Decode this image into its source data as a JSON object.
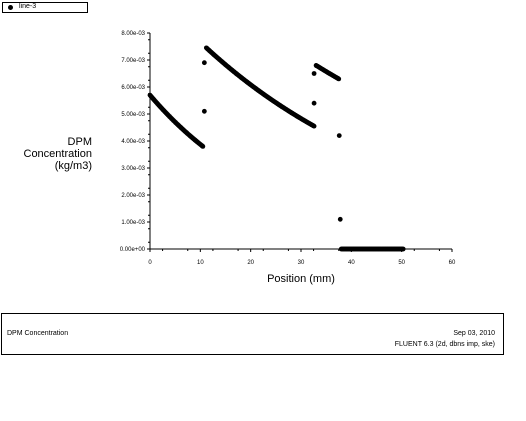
{
  "legend": {
    "label": "line-3",
    "marker": "filled-circle-icon"
  },
  "footer": {
    "left": "DPM Concentration",
    "date": "Sep 03, 2010",
    "version": "FLUENT 6.3 (2d, dbns imp, ske)"
  },
  "colors": {
    "points": "#000000",
    "axes": "#000000",
    "background": "#ffffff"
  },
  "chart_data": {
    "type": "scatter",
    "title": "",
    "xlabel": "Position (mm)",
    "ylabel_lines": [
      "DPM",
      "Concentration",
      "(kg/m3)"
    ],
    "xlim": [
      0,
      60
    ],
    "ylim": [
      0,
      0.008
    ],
    "xticks": [
      "0",
      "10",
      "20",
      "30",
      "40",
      "50",
      "60"
    ],
    "yticks": [
      "0.00e+00",
      "1.00e-03",
      "2.00e-03",
      "3.00e-03",
      "4.00e-03",
      "5.00e-03",
      "6.00e-03",
      "7.00e-03",
      "8.00e-03"
    ],
    "grid": false,
    "legend_position": "top-left",
    "series": [
      {
        "name": "line-3",
        "segments": [
          {
            "x_start": 0,
            "x_end": 10.5,
            "y_start": 0.0057,
            "y_end": 0.0038,
            "count": 80
          },
          {
            "x_start": 11.2,
            "x_end": 32.6,
            "y_start": 0.00745,
            "y_end": 0.00455,
            "count": 150
          },
          {
            "x_start": 33.0,
            "x_end": 37.5,
            "y_start": 0.0068,
            "y_end": 0.0063,
            "count": 30
          },
          {
            "x_start": 38.0,
            "x_end": 50.3,
            "y_start": 0.0,
            "y_end": 0.0,
            "count": 90
          }
        ],
        "points": [
          {
            "x": 10.8,
            "y": 0.0069
          },
          {
            "x": 10.8,
            "y": 0.0051
          },
          {
            "x": 32.6,
            "y": 0.0065
          },
          {
            "x": 32.6,
            "y": 0.0054
          },
          {
            "x": 37.6,
            "y": 0.0042
          },
          {
            "x": 37.8,
            "y": 0.0011
          }
        ]
      }
    ]
  }
}
